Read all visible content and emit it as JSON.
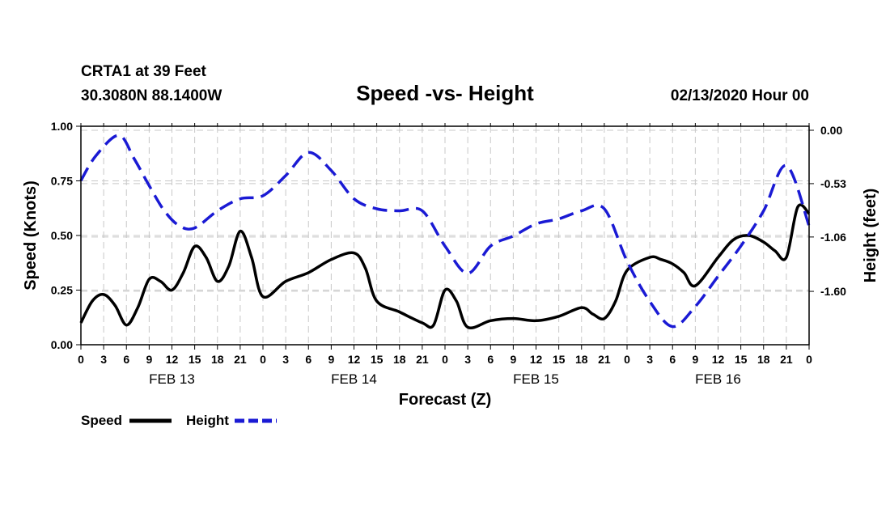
{
  "header": {
    "station": "CRTA1 at 39 Feet",
    "location": "30.3080N 88.1400W",
    "datetime": "02/13/2020 Hour 00"
  },
  "chart_data": {
    "type": "line",
    "title": "Speed -vs- Height",
    "xlabel": "Forecast (Z)",
    "ylabel_left": "Speed (Knots)",
    "ylabel_right": "Height (feet)",
    "ylim_left": [
      0,
      1.0
    ],
    "yticks_left": [
      "0.00",
      "0.25",
      "0.50",
      "0.75",
      "1.00"
    ],
    "ylim_right": [
      -2.13,
      0.04
    ],
    "yticks_right": [
      {
        "label": "0.00",
        "value": 0.0
      },
      {
        "label": "-0.53",
        "value": -0.53
      },
      {
        "label": "-1.06",
        "value": -1.06
      },
      {
        "label": "-1.60",
        "value": -1.6
      }
    ],
    "xlim_hours": [
      0,
      96
    ],
    "xtick_labels": [
      "0",
      "3",
      "6",
      "9",
      "12",
      "15",
      "18",
      "21",
      "0",
      "3",
      "6",
      "9",
      "12",
      "15",
      "18",
      "21",
      "0",
      "3",
      "6",
      "9",
      "12",
      "15",
      "18",
      "21",
      "0",
      "3",
      "6",
      "9",
      "12",
      "15",
      "18",
      "21",
      "0"
    ],
    "day_labels": [
      {
        "label": "FEB 13",
        "hour": 12
      },
      {
        "label": "FEB 14",
        "hour": 36
      },
      {
        "label": "FEB 15",
        "hour": 60
      },
      {
        "label": "FEB 16",
        "hour": 84
      }
    ],
    "grid": true,
    "legend_position": "bottom-left",
    "series": [
      {
        "name": "Speed",
        "axis": "left",
        "color": "#000000",
        "style": "solid",
        "x": [
          0,
          1.5,
          3,
          4.5,
          6,
          7.5,
          9,
          10.5,
          12,
          13.5,
          15,
          16.5,
          18,
          19.5,
          21,
          22.5,
          24,
          27,
          30,
          33,
          36,
          37.5,
          39,
          42,
          45,
          46.5,
          48,
          49.5,
          51,
          54,
          57,
          60,
          63,
          66,
          67.5,
          69,
          70.5,
          72,
          75,
          76.5,
          78,
          79.5,
          81,
          84,
          86,
          88,
          90,
          91.5,
          93,
          94.5,
          96
        ],
        "values": [
          0.1,
          0.2,
          0.23,
          0.18,
          0.09,
          0.17,
          0.3,
          0.29,
          0.25,
          0.33,
          0.45,
          0.4,
          0.29,
          0.36,
          0.52,
          0.4,
          0.22,
          0.29,
          0.33,
          0.39,
          0.42,
          0.35,
          0.2,
          0.15,
          0.1,
          0.09,
          0.25,
          0.2,
          0.08,
          0.11,
          0.12,
          0.11,
          0.13,
          0.17,
          0.14,
          0.12,
          0.2,
          0.34,
          0.4,
          0.39,
          0.37,
          0.33,
          0.27,
          0.4,
          0.48,
          0.5,
          0.47,
          0.43,
          0.4,
          0.63,
          0.6
        ]
      },
      {
        "name": "Height",
        "axis": "right",
        "color": "#1a1ad4",
        "style": "dashed",
        "x": [
          0,
          2,
          5,
          7,
          9,
          11,
          13,
          15,
          18,
          21,
          24,
          27,
          30,
          33,
          36,
          39,
          42,
          45,
          48,
          51,
          54,
          57,
          60,
          63,
          66,
          69,
          72,
          75,
          78,
          81,
          84,
          87,
          90,
          93,
          96
        ],
        "values": [
          -0.5,
          -0.25,
          -0.05,
          -0.28,
          -0.55,
          -0.8,
          -0.95,
          -0.97,
          -0.8,
          -0.68,
          -0.65,
          -0.45,
          -0.22,
          -0.4,
          -0.68,
          -0.78,
          -0.8,
          -0.8,
          -1.15,
          -1.42,
          -1.15,
          -1.05,
          -0.93,
          -0.88,
          -0.8,
          -0.78,
          -1.3,
          -1.7,
          -1.95,
          -1.75,
          -1.45,
          -1.15,
          -0.8,
          -0.35,
          -0.95
        ]
      }
    ]
  }
}
